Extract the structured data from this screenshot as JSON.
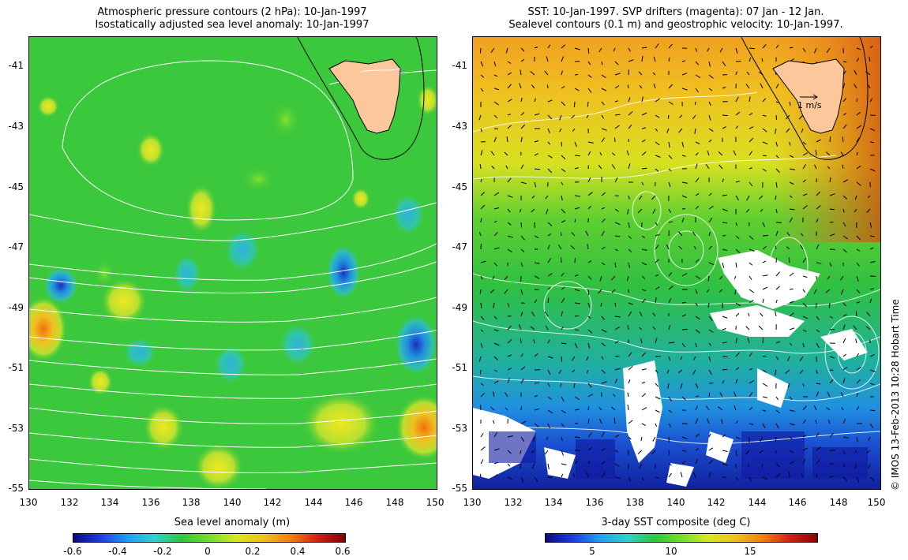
{
  "left_panel": {
    "title_line1": "Atmospheric pressure contours (2 hPa): 10-Jan-1997",
    "title_line2": "Isostatically adjusted sea level anomaly: 10-Jan-1997",
    "y_ticks": [
      "-41",
      "-43",
      "-45",
      "-47",
      "-49",
      "-51",
      "-53",
      "-55"
    ],
    "x_ticks": [
      "130",
      "132",
      "134",
      "136",
      "138",
      "140",
      "142",
      "144",
      "146",
      "148",
      "150"
    ],
    "colorbar": {
      "label": "Sea level anomaly (m)",
      "ticks": [
        "-0.6",
        "-0.4",
        "-0.2",
        "0",
        "0.2",
        "0.4",
        "0.6"
      ]
    }
  },
  "right_panel": {
    "title_line1": "SST: 10-Jan-1997. SVP drifters (magenta): 07 Jan - 12 Jan.",
    "title_line2": "Sealevel contours (0.1 m) and geostrophic velocity: 10-Jan-1997.",
    "y_ticks": [
      "-41",
      "-43",
      "-45",
      "-47",
      "-49",
      "-51",
      "-53",
      "-55"
    ],
    "x_ticks": [
      "130",
      "132",
      "134",
      "136",
      "138",
      "140",
      "142",
      "144",
      "146",
      "148",
      "150"
    ],
    "scale_arrow_label": "1 m/s",
    "colorbar": {
      "label": "3-day SST composite (deg C)",
      "ticks": [
        "5",
        "10",
        "15"
      ]
    }
  },
  "credit": "© IMOS 13-Feb-2013 10:28 Hobart Time",
  "colors": {
    "land": "#fcc79a",
    "ocean_green": "#2dc83a",
    "contour": "#ffffff",
    "coast": "#000000"
  }
}
